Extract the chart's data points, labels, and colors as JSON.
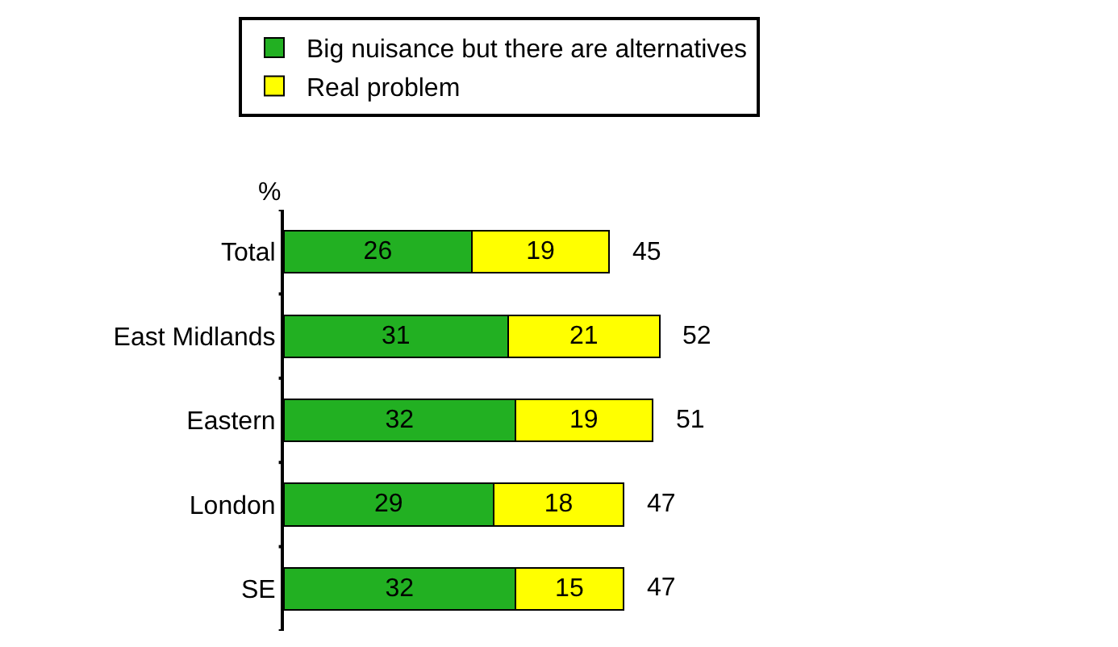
{
  "chart_data": {
    "type": "bar",
    "orientation": "horizontal",
    "stacked": true,
    "ylabel": "%",
    "categories": [
      "Total",
      "East Midlands",
      "Eastern",
      "London",
      "SE"
    ],
    "series": [
      {
        "name": "Big nuisance but there are alternatives",
        "color": "#22b022",
        "values": [
          26,
          31,
          32,
          29,
          32
        ]
      },
      {
        "name": "Real problem",
        "color": "#ffff00",
        "values": [
          19,
          21,
          19,
          18,
          15
        ]
      }
    ],
    "totals": [
      "45",
      "52",
      "51",
      "47",
      "47"
    ],
    "data_labels": true,
    "tick_labels": "y",
    "legend": "top"
  }
}
